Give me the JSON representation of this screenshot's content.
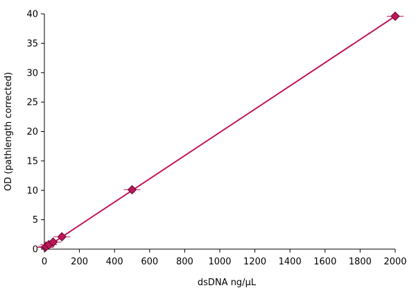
{
  "chart_data": {
    "type": "scatter",
    "title": "",
    "xlabel": "dsDNA ng/µL",
    "ylabel": "OD (pathlength corrected)",
    "xlim": [
      0,
      2000
    ],
    "ylim": [
      0,
      40
    ],
    "x_ticks": [
      0,
      200,
      400,
      600,
      800,
      1000,
      1200,
      1400,
      1600,
      1800,
      2000
    ],
    "y_ticks": [
      0,
      5,
      10,
      15,
      20,
      25,
      30,
      35,
      40
    ],
    "grid": false,
    "legend": "none",
    "series": [
      {
        "marker": "diamond",
        "points": [
          {
            "x": 5,
            "y": 0.3
          },
          {
            "x": 10,
            "y": 0.45
          },
          {
            "x": 25,
            "y": 0.75
          },
          {
            "x": 50,
            "y": 1.2
          },
          {
            "x": 100,
            "y": 2.1
          },
          {
            "x": 500,
            "y": 10.1
          },
          {
            "x": 2000,
            "y": 39.6
          }
        ],
        "trendline": {
          "x": [
            0,
            2000
          ],
          "y": [
            0.1,
            39.6
          ]
        }
      }
    ],
    "colors": {
      "series": "#c0155a",
      "marker_stroke": "#5a0a2a",
      "axis": "#000000"
    }
  }
}
